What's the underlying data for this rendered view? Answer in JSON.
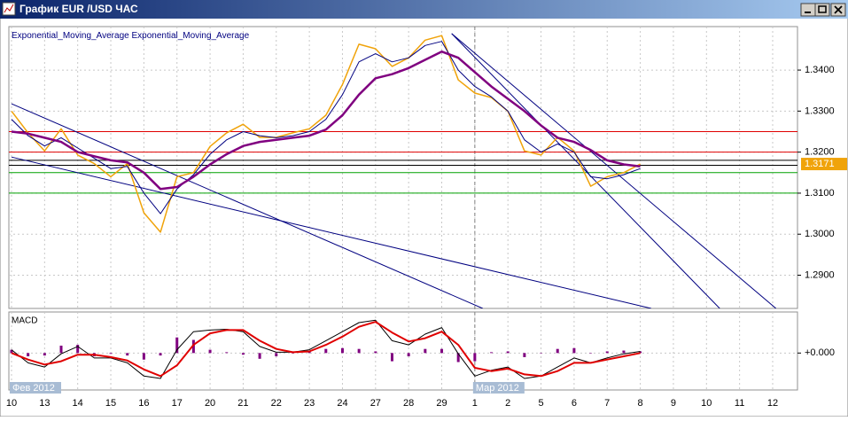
{
  "window_title": "График EUR /USD ЧАС",
  "chart_data": [
    {
      "type": "line",
      "legend_text_color": "#000080",
      "xlim": [
        -0.08,
        23.75
      ],
      "xticks": [
        {
          "value": 0,
          "label": "10"
        },
        {
          "value": 1,
          "label": "13"
        },
        {
          "value": 2,
          "label": "14"
        },
        {
          "value": 3,
          "label": "15"
        },
        {
          "value": 4,
          "label": "16"
        },
        {
          "value": 5,
          "label": "17"
        },
        {
          "value": 6,
          "label": "20"
        },
        {
          "value": 7,
          "label": "21"
        },
        {
          "value": 8,
          "label": "22"
        },
        {
          "value": 9,
          "label": "23"
        },
        {
          "value": 10,
          "label": "24"
        },
        {
          "value": 11,
          "label": "27"
        },
        {
          "value": 12,
          "label": "28"
        },
        {
          "value": 13,
          "label": "29"
        },
        {
          "value": 14,
          "label": "1"
        },
        {
          "value": 15,
          "label": "2"
        },
        {
          "value": 16,
          "label": "5"
        },
        {
          "value": 17,
          "label": "6"
        },
        {
          "value": 18,
          "label": "7"
        },
        {
          "value": 19,
          "label": "8"
        },
        {
          "value": 20,
          "label": "9"
        },
        {
          "value": 21,
          "label": "10"
        },
        {
          "value": 22,
          "label": "11"
        },
        {
          "value": 23,
          "label": "12"
        }
      ],
      "period_ticks": [
        {
          "value": 0,
          "label": "Фев 2012"
        },
        {
          "value": 14,
          "label": "Мар 2012"
        }
      ],
      "ylim": [
        1.2819,
        1.3506
      ],
      "yticks": [
        {
          "value": 1.29,
          "label": "1.2900"
        },
        {
          "value": 1.3,
          "label": "1.3000"
        },
        {
          "value": 1.31,
          "label": "1.3100"
        },
        {
          "value": 1.32,
          "label": "1.3200"
        },
        {
          "value": 1.33,
          "label": "1.3300"
        },
        {
          "value": 1.34,
          "label": "1.3400"
        }
      ],
      "grid": true,
      "x": [
        0,
        0.5,
        1,
        1.5,
        2,
        2.5,
        3,
        3.5,
        4,
        4.5,
        5,
        5.5,
        6,
        6.5,
        7,
        7.5,
        8,
        8.5,
        9,
        9.5,
        10,
        10.5,
        11,
        11.5,
        12,
        12.5,
        13,
        13.5,
        14,
        14.5,
        15,
        15.5,
        16,
        16.5,
        17,
        17.5,
        18,
        18.5,
        19
      ],
      "series": [
        {
          "color": "#f0a30a",
          "width": 1.5,
          "values": [
            1.33,
            1.3247,
            1.3203,
            1.3257,
            1.3193,
            1.3172,
            1.314,
            1.3172,
            1.3052,
            1.3005,
            1.314,
            1.315,
            1.3214,
            1.3247,
            1.3268,
            1.3236,
            1.3236,
            1.3247,
            1.3257,
            1.329,
            1.3365,
            1.3463,
            1.3452,
            1.3409,
            1.343,
            1.3473,
            1.3484,
            1.3376,
            1.3344,
            1.3333,
            1.33,
            1.3203,
            1.3193,
            1.3236,
            1.3203,
            1.3117,
            1.314,
            1.315,
            1.3171
          ]
        },
        {
          "name": "Exponential_Moving_Average",
          "color": "#000080",
          "width": 1,
          "values": [
            1.328,
            1.324,
            1.3215,
            1.3235,
            1.321,
            1.3185,
            1.316,
            1.3165,
            1.31,
            1.305,
            1.311,
            1.3145,
            1.3195,
            1.323,
            1.325,
            1.324,
            1.3235,
            1.324,
            1.325,
            1.328,
            1.334,
            1.342,
            1.344,
            1.342,
            1.343,
            1.346,
            1.347,
            1.34,
            1.336,
            1.3335,
            1.33,
            1.323,
            1.32,
            1.322,
            1.32,
            1.314,
            1.3135,
            1.3145,
            1.316
          ]
        },
        {
          "name": "Exponential_Moving_Average",
          "color": "#800080",
          "width": 2.5,
          "values": [
            1.325,
            1.3245,
            1.3235,
            1.3225,
            1.32,
            1.319,
            1.318,
            1.3175,
            1.315,
            1.311,
            1.3115,
            1.314,
            1.317,
            1.3195,
            1.3215,
            1.3225,
            1.323,
            1.3235,
            1.324,
            1.3255,
            1.329,
            1.334,
            1.338,
            1.339,
            1.3405,
            1.3425,
            1.3445,
            1.343,
            1.3395,
            1.336,
            1.333,
            1.33,
            1.3265,
            1.3235,
            1.3225,
            1.3205,
            1.318,
            1.317,
            1.3165
          ]
        }
      ],
      "levels": [
        {
          "value": 1.325,
          "color": "#e00000"
        },
        {
          "value": 1.32,
          "color": "#e00000"
        },
        {
          "value": 1.318,
          "color": "#000000"
        },
        {
          "value": 1.3168,
          "color": "#000000"
        },
        {
          "value": 1.315,
          "color": "#00a000"
        },
        {
          "value": 1.31,
          "color": "#00a000"
        }
      ],
      "trendlines": [
        {
          "x": [
            0,
            14.24
          ],
          "y": [
            1.3318,
            1.2819
          ],
          "color": "#000080"
        },
        {
          "x": [
            0,
            19.33
          ],
          "y": [
            1.3188,
            1.2819
          ],
          "color": "#000080"
        },
        {
          "x": [
            13.3,
            21.4
          ],
          "y": [
            1.3489,
            1.2819
          ],
          "color": "#000080"
        },
        {
          "x": [
            13.3,
            23.1
          ],
          "y": [
            1.3489,
            1.2819
          ],
          "color": "#000080"
        }
      ],
      "last_price": 1.3171,
      "last_price_color": "#f0a30a"
    },
    {
      "type": "macd",
      "title": "MACD",
      "ylim": [
        -0.0045,
        0.005
      ],
      "yticks": [
        {
          "value": 0,
          "label": "+0.000"
        }
      ],
      "series": [
        {
          "kind": "bar",
          "color": "#800080",
          "values": [
            0.0004,
            -0.0004,
            -0.0003,
            0.0009,
            0.001,
            -0.0004,
            -0.0001,
            -0.0003,
            -0.0008,
            -0.0003,
            0.0019,
            0.0016,
            0.0004,
            0.0001,
            -0.0002,
            -0.0007,
            -0.0004,
            0,
            0.0002,
            0.0005,
            0.0006,
            0.0005,
            0.0002,
            -0.001,
            -0.0004,
            0.0005,
            0.0005,
            -0.0011,
            -0.001,
            0.0001,
            0.0002,
            -0.0005,
            0,
            0.0005,
            0.0006,
            0,
            0.0002,
            0.0003,
            0.0002
          ]
        },
        {
          "kind": "line",
          "color": "#000000",
          "width": 1,
          "values": [
            0.0004,
            -0.0012,
            -0.0017,
            -0.0001,
            0.0008,
            -0.0006,
            -0.0006,
            -0.0012,
            -0.0028,
            -0.0031,
            0.0004,
            0.0026,
            0.0028,
            0.0029,
            0.0026,
            0.0008,
            0.0001,
            0.0001,
            0.0004,
            0.0015,
            0.0026,
            0.0037,
            0.004,
            0.0015,
            0.001,
            0.0023,
            0.0031,
            -0.0001,
            -0.0028,
            -0.0021,
            -0.0017,
            -0.0031,
            -0.0028,
            -0.0017,
            -0.0006,
            -0.0012,
            -0.0006,
            -0.0001,
            0.0002
          ]
        },
        {
          "kind": "line",
          "color": "#e00000",
          "width": 2,
          "values": [
            0,
            -0.0008,
            -0.0014,
            -0.001,
            -0.0002,
            -0.0002,
            -0.0005,
            -0.0009,
            -0.002,
            -0.0028,
            -0.0015,
            0.001,
            0.0024,
            0.0028,
            0.0028,
            0.0015,
            0.0005,
            0.0001,
            0.0002,
            0.001,
            0.002,
            0.0032,
            0.0038,
            0.0025,
            0.0014,
            0.0018,
            0.0026,
            0.001,
            -0.0018,
            -0.0022,
            -0.0019,
            -0.0026,
            -0.0028,
            -0.0022,
            -0.0012,
            -0.0012,
            -0.0008,
            -0.0004,
            0
          ]
        }
      ]
    }
  ]
}
